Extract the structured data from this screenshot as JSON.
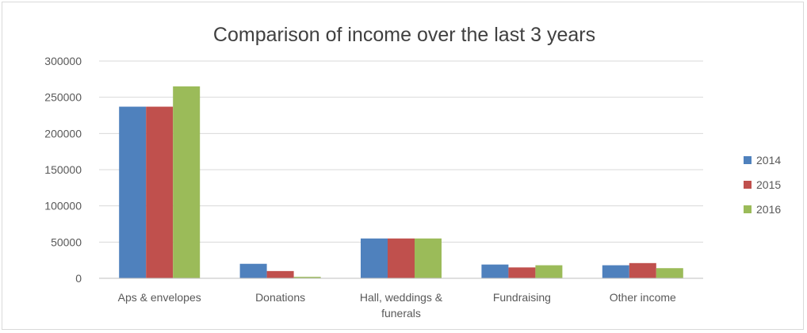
{
  "chart_data": {
    "type": "bar",
    "title": "Comparison of income over the last 3 years",
    "categories": [
      "Aps & envelopes",
      "Donations",
      "Hall, weddings &\nfunerals",
      "Fundraising",
      "Other income"
    ],
    "series": [
      {
        "name": "2014",
        "color": "#4f81bd",
        "values": [
          237000,
          20000,
          55000,
          19000,
          18000
        ]
      },
      {
        "name": "2015",
        "color": "#c0504d",
        "values": [
          237000,
          10000,
          55000,
          15000,
          21000
        ]
      },
      {
        "name": "2016",
        "color": "#9bbb59",
        "values": [
          265000,
          2000,
          55000,
          18000,
          14000
        ]
      }
    ],
    "ylim": [
      0,
      300000
    ],
    "yticks": [
      0,
      50000,
      100000,
      150000,
      200000,
      250000,
      300000
    ],
    "ytick_labels": [
      "0",
      "50000",
      "100000",
      "150000",
      "200000",
      "250000",
      "300000"
    ],
    "xlabel": "",
    "ylabel": "",
    "grid": true,
    "legend_position": "right"
  }
}
